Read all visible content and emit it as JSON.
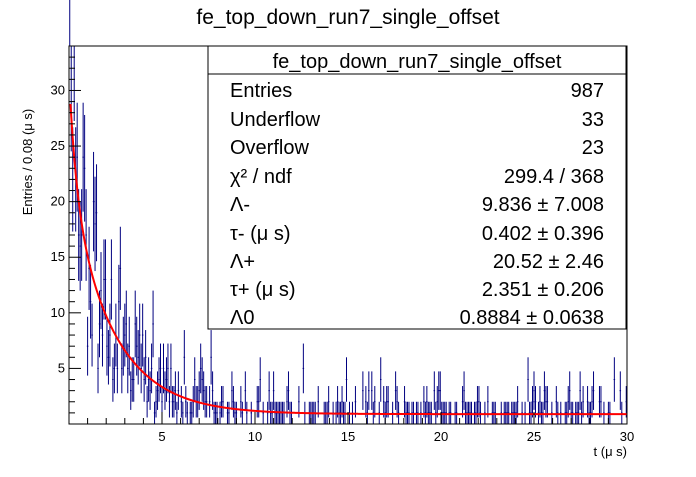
{
  "chart_data": {
    "type": "histogram",
    "title": "fe_top_down_run7_single_offset",
    "xlabel": "t (μ s)",
    "ylabel": "Entries / 0.08 (μ s)",
    "xlim": [
      0,
      30
    ],
    "ylim": [
      0,
      34
    ],
    "x_ticks": [
      5,
      10,
      15,
      20,
      25,
      30
    ],
    "y_ticks": [
      5,
      10,
      15,
      20,
      25,
      30
    ],
    "grid": false,
    "bin_width": 0.08,
    "histogram_color": "#000080",
    "fit_color": "#ff0000",
    "fit_curve": {
      "model": "Λ- exp(-t/τ-) + Λ+ exp(-t/τ+) + Λ0",
      "params": {
        "lambda_minus": 9.836,
        "tau_minus": 0.402,
        "lambda_plus": 20.52,
        "tau_plus": 2.351,
        "lambda_0": 0.8884
      }
    },
    "stats_box": {
      "title": "fe_top_down_run7_single_offset",
      "placement": "top-right",
      "rows": [
        {
          "label": "Entries",
          "value": "987"
        },
        {
          "label": "Underflow",
          "value": "33"
        },
        {
          "label": "Overflow",
          "value": "23"
        },
        {
          "label": "χ² / ndf",
          "value": "299.4 / 368"
        },
        {
          "label": "Λ-",
          "value": "9.836 ± 7.008"
        },
        {
          "label": "τ- (μ s)",
          "value": "0.402 ± 0.396"
        },
        {
          "label": "Λ+",
          "value": "20.52 ± 2.46"
        },
        {
          "label": "τ+ (μ s)",
          "value": "2.351 ± 0.206"
        },
        {
          "label": "Λ0",
          "value": "0.8884 ± 0.0638"
        }
      ]
    }
  }
}
